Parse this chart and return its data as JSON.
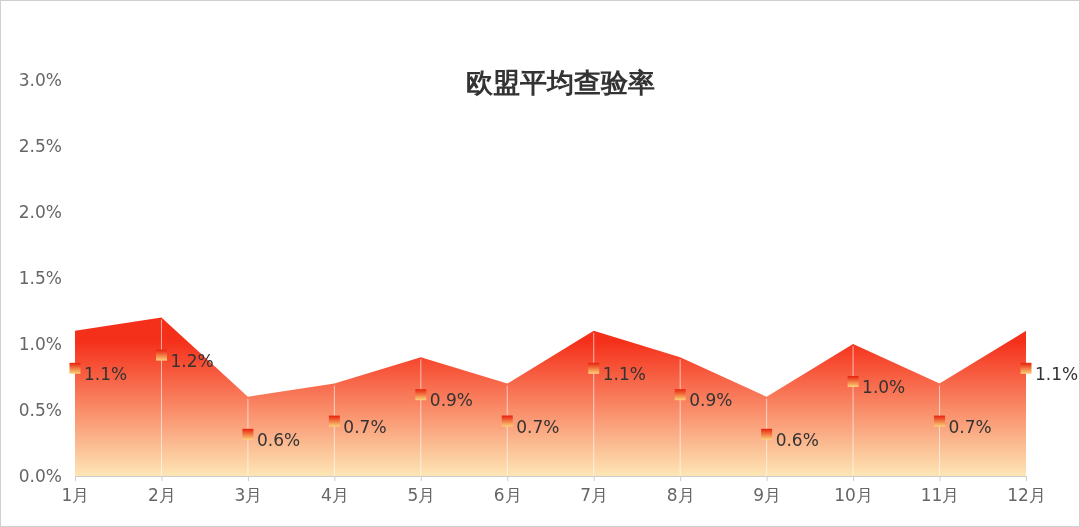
{
  "chart_data": {
    "type": "area",
    "title": "欧盟平均查验率",
    "categories": [
      "1月",
      "2月",
      "3月",
      "4月",
      "5月",
      "6月",
      "7月",
      "8月",
      "9月",
      "10月",
      "11月",
      "12月"
    ],
    "series": [
      {
        "color": "#f5301a",
        "values": [
          1.1,
          1.2,
          0.6,
          0.7,
          0.9,
          0.7,
          1.1,
          0.9,
          0.6,
          1.0,
          0.7,
          1.1
        ],
        "value_labels": [
          "1.1%",
          "1.2%",
          "0.6%",
          "0.7%",
          "0.9%",
          "0.7%",
          "1.1%",
          "0.9%",
          "0.6%",
          "1.0%",
          "0.7%",
          "1.1%"
        ]
      }
    ],
    "ylim": [
      0,
      3
    ],
    "yticks": [
      {
        "value": 0,
        "label": "0.0%"
      },
      {
        "value": 0.5,
        "label": "0.5%"
      },
      {
        "value": 1,
        "label": "1.0%"
      },
      {
        "value": 1.5,
        "label": "1.5%"
      },
      {
        "value": 2,
        "label": "2.0%"
      },
      {
        "value": 2.5,
        "label": "2.5%"
      },
      {
        "value": 3,
        "label": "3.0%"
      }
    ],
    "grid": false,
    "legend": false
  }
}
